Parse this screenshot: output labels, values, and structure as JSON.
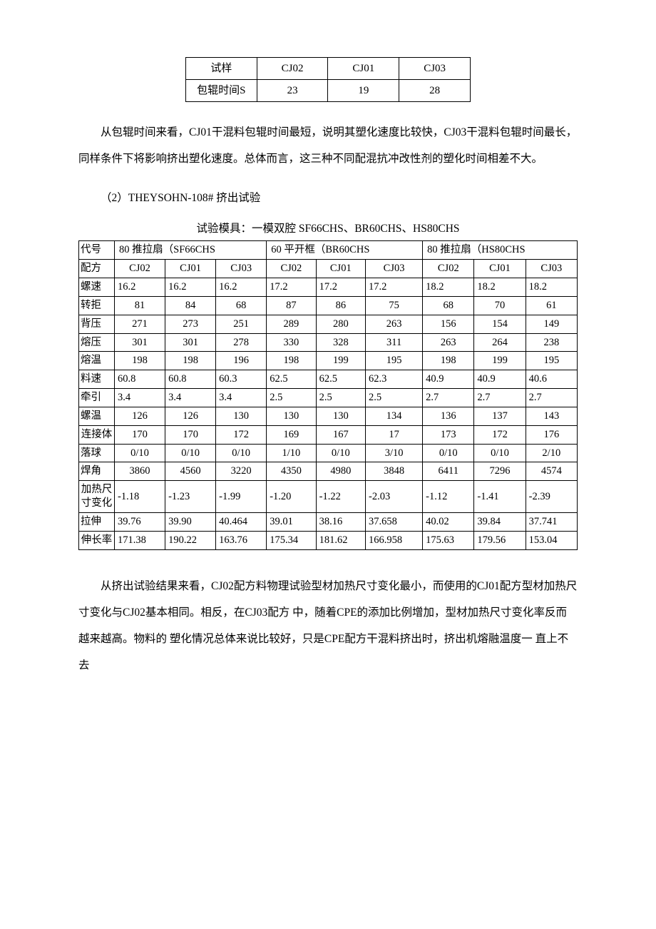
{
  "table1": {
    "rows": [
      [
        "试样",
        "CJ02",
        "CJ01",
        "CJ03"
      ],
      [
        "包辊时间S",
        "23",
        "19",
        "28"
      ]
    ]
  },
  "para1": "从包辊时间来看，CJ01干混料包辊时间最短，说明其塑化速度比较快，CJ03干混料包辊时间最长，同样条件下将影响挤出塑化速度。总体而言，这三种不同配混抗冲改性剂的塑化时间相差不大。",
  "sectionLabel": "（2）THEYSOHN-108# 挤出试验",
  "caption": "试验模具：一模双腔 SF66CHS、BR60CHS、HS80CHS",
  "table2": {
    "headerTop": {
      "c0": "代号",
      "g1": "80 推拉扇（SF66CHS",
      "g2": "60 平开框（BR60CHS",
      "g3": "80 推拉扇（HS80CHS"
    },
    "headerFormula": {
      "c0": "配方",
      "cols": [
        "CJ02",
        "CJ01",
        "CJ03",
        "CJ02",
        "CJ01",
        "CJ03",
        "CJ02",
        "CJ01",
        "CJ03"
      ]
    },
    "rows": [
      {
        "label": "螺速",
        "vals": [
          "16.2",
          "16.2",
          "16.2",
          "17.2",
          "17.2",
          "17.2",
          "18.2",
          "18.2",
          "18.2"
        ],
        "align": "left"
      },
      {
        "label": "转拒",
        "vals": [
          "81",
          "84",
          "68",
          "87",
          "86",
          "75",
          "68",
          "70",
          "61"
        ],
        "align": "center"
      },
      {
        "label": "背压",
        "vals": [
          "271",
          "273",
          "251",
          "289",
          "280",
          "263",
          "156",
          "154",
          "149"
        ],
        "align": "center"
      },
      {
        "label": "熔压",
        "vals": [
          "301",
          "301",
          "278",
          "330",
          "328",
          "311",
          "263",
          "264",
          "238"
        ],
        "align": "center"
      },
      {
        "label": "熔温",
        "vals": [
          "198",
          "198",
          "196",
          "198",
          "199",
          "195",
          "198",
          "199",
          "195"
        ],
        "align": "center"
      },
      {
        "label": "料速",
        "vals": [
          "60.8",
          "60.8",
          "60.3",
          "62.5",
          "62.5",
          "62.3",
          "40.9",
          "40.9",
          "40.6"
        ],
        "align": "left"
      },
      {
        "label": "牵引",
        "vals": [
          "3.4",
          "3.4",
          "3.4",
          "2.5",
          "2.5",
          "2.5",
          "2.7",
          "2.7",
          "2.7"
        ],
        "align": "left"
      },
      {
        "label": "螺温",
        "vals": [
          "126",
          "126",
          "130",
          "130",
          "130",
          "134",
          "136",
          "137",
          "143"
        ],
        "align": "center"
      },
      {
        "label": "连接体",
        "vals": [
          "170",
          "170",
          "172",
          "169",
          "167",
          "17",
          "173",
          "172",
          "176"
        ],
        "align": "center",
        "wrap": true
      },
      {
        "label": "落球",
        "vals": [
          "0/10",
          "0/10",
          "0/10",
          "1/10",
          "0/10",
          "3/10",
          "0/10",
          "0/10",
          "2/10"
        ],
        "align": "center"
      },
      {
        "label": "焊角",
        "vals": [
          "3860",
          "4560",
          "3220",
          "4350",
          "4980",
          "3848",
          "6411",
          "7296",
          "4574"
        ],
        "align": "center"
      },
      {
        "label": "加热尺寸变化",
        "vals": [
          "-1.18",
          "-1.23",
          "-1.99",
          "-1.20",
          "-1.22",
          "-2.03",
          "-1.12",
          "-1.41",
          "-2.39"
        ],
        "align": "left",
        "wrap": true
      },
      {
        "label": "拉伸",
        "vals": [
          "39.76",
          "39.90",
          "40.464",
          "39.01",
          "38.16",
          "37.658",
          "40.02",
          "39.84",
          "37.741"
        ],
        "align": "left"
      },
      {
        "label": "伸长率",
        "vals": [
          "171.38",
          "190.22",
          "163.76",
          "175.34",
          "181.62",
          "166.958",
          "175.63",
          "179.56",
          "153.04"
        ],
        "align": "left",
        "wrap": true
      }
    ]
  },
  "para2": "从挤出试验结果来看，CJ02配方料物理试验型材加热尺寸变化最小，而使用的CJ01配方型材加热尺寸变化与CJ02基本相同。相反，在CJ03配方 中，随着CPE的添加比例增加，型材加热尺寸变化率反而越来越高。物料的 塑化情况总体来说比较好，只是CPE配方干混料挤出时，挤出机熔融温度一 直上不去"
}
